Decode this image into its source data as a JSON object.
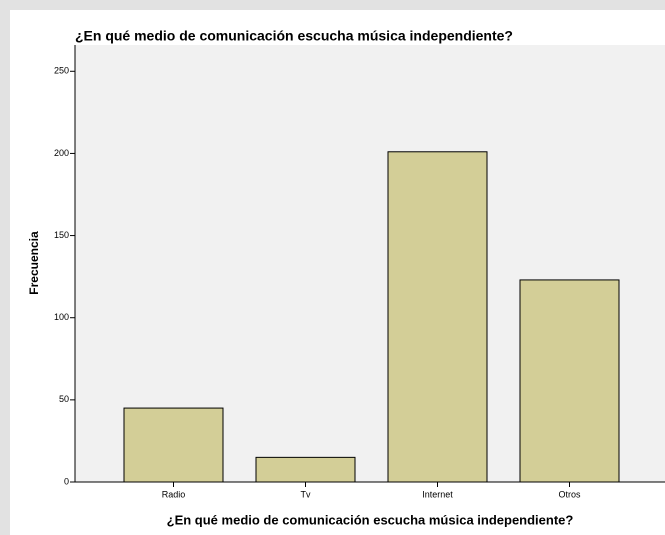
{
  "chart_data": {
    "type": "bar",
    "title": "¿En qué medio de comunicación escucha música independiente?",
    "xlabel": "¿En qué medio de comunicación escucha música independiente?",
    "ylabel": "Frecuencia",
    "categories": [
      "Radio",
      "Tv",
      "Internet",
      "Otros"
    ],
    "values": [
      45,
      15,
      201,
      123
    ],
    "color": "#d3ce97",
    "ylim": [
      0,
      266
    ],
    "yticks": [
      0,
      50,
      100,
      150,
      200,
      250
    ],
    "grid": false
  }
}
